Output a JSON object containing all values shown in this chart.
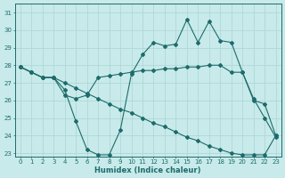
{
  "xlabel": "Humidex (Indice chaleur)",
  "background_color": "#c8eaea",
  "grid_color": "#b0d8d8",
  "line_color": "#1e6b6b",
  "xlim": [
    -0.5,
    23.5
  ],
  "ylim": [
    22.8,
    31.5
  ],
  "yticks": [
    23,
    24,
    25,
    26,
    27,
    28,
    29,
    30,
    31
  ],
  "xticks": [
    0,
    1,
    2,
    3,
    4,
    5,
    6,
    7,
    8,
    9,
    10,
    11,
    12,
    13,
    14,
    15,
    16,
    17,
    18,
    19,
    20,
    21,
    22,
    23
  ],
  "xticklabels": [
    "0",
    "1",
    "2",
    "3",
    "4",
    "5",
    "6",
    "7",
    "8",
    "9",
    "10",
    "11",
    "12",
    "13",
    "14",
    "15",
    "16",
    "17",
    "18",
    "19",
    "20",
    "21",
    "22",
    "23"
  ],
  "series": [
    [
      27.9,
      27.6,
      27.3,
      27.3,
      26.6,
      24.8,
      23.2,
      22.9,
      22.9,
      24.3,
      27.5,
      28.6,
      29.3,
      29.1,
      29.2,
      30.6,
      29.3,
      30.5,
      29.4,
      29.3,
      27.6,
      26.1,
      25.0,
      23.9
    ],
    [
      27.9,
      27.6,
      27.3,
      27.3,
      26.3,
      26.1,
      26.3,
      27.3,
      27.4,
      27.5,
      27.6,
      27.7,
      27.7,
      27.8,
      27.8,
      27.9,
      27.9,
      28.0,
      28.0,
      27.6,
      27.6,
      26.0,
      25.8,
      24.0
    ],
    [
      27.9,
      27.6,
      27.3,
      27.3,
      27.0,
      26.7,
      26.4,
      26.1,
      25.8,
      25.5,
      25.3,
      25.0,
      24.7,
      24.5,
      24.2,
      23.9,
      23.7,
      23.4,
      23.2,
      23.0,
      22.9,
      22.9,
      22.9,
      24.0
    ]
  ],
  "xlabel_fontsize": 6.0,
  "tick_fontsize": 5.0
}
